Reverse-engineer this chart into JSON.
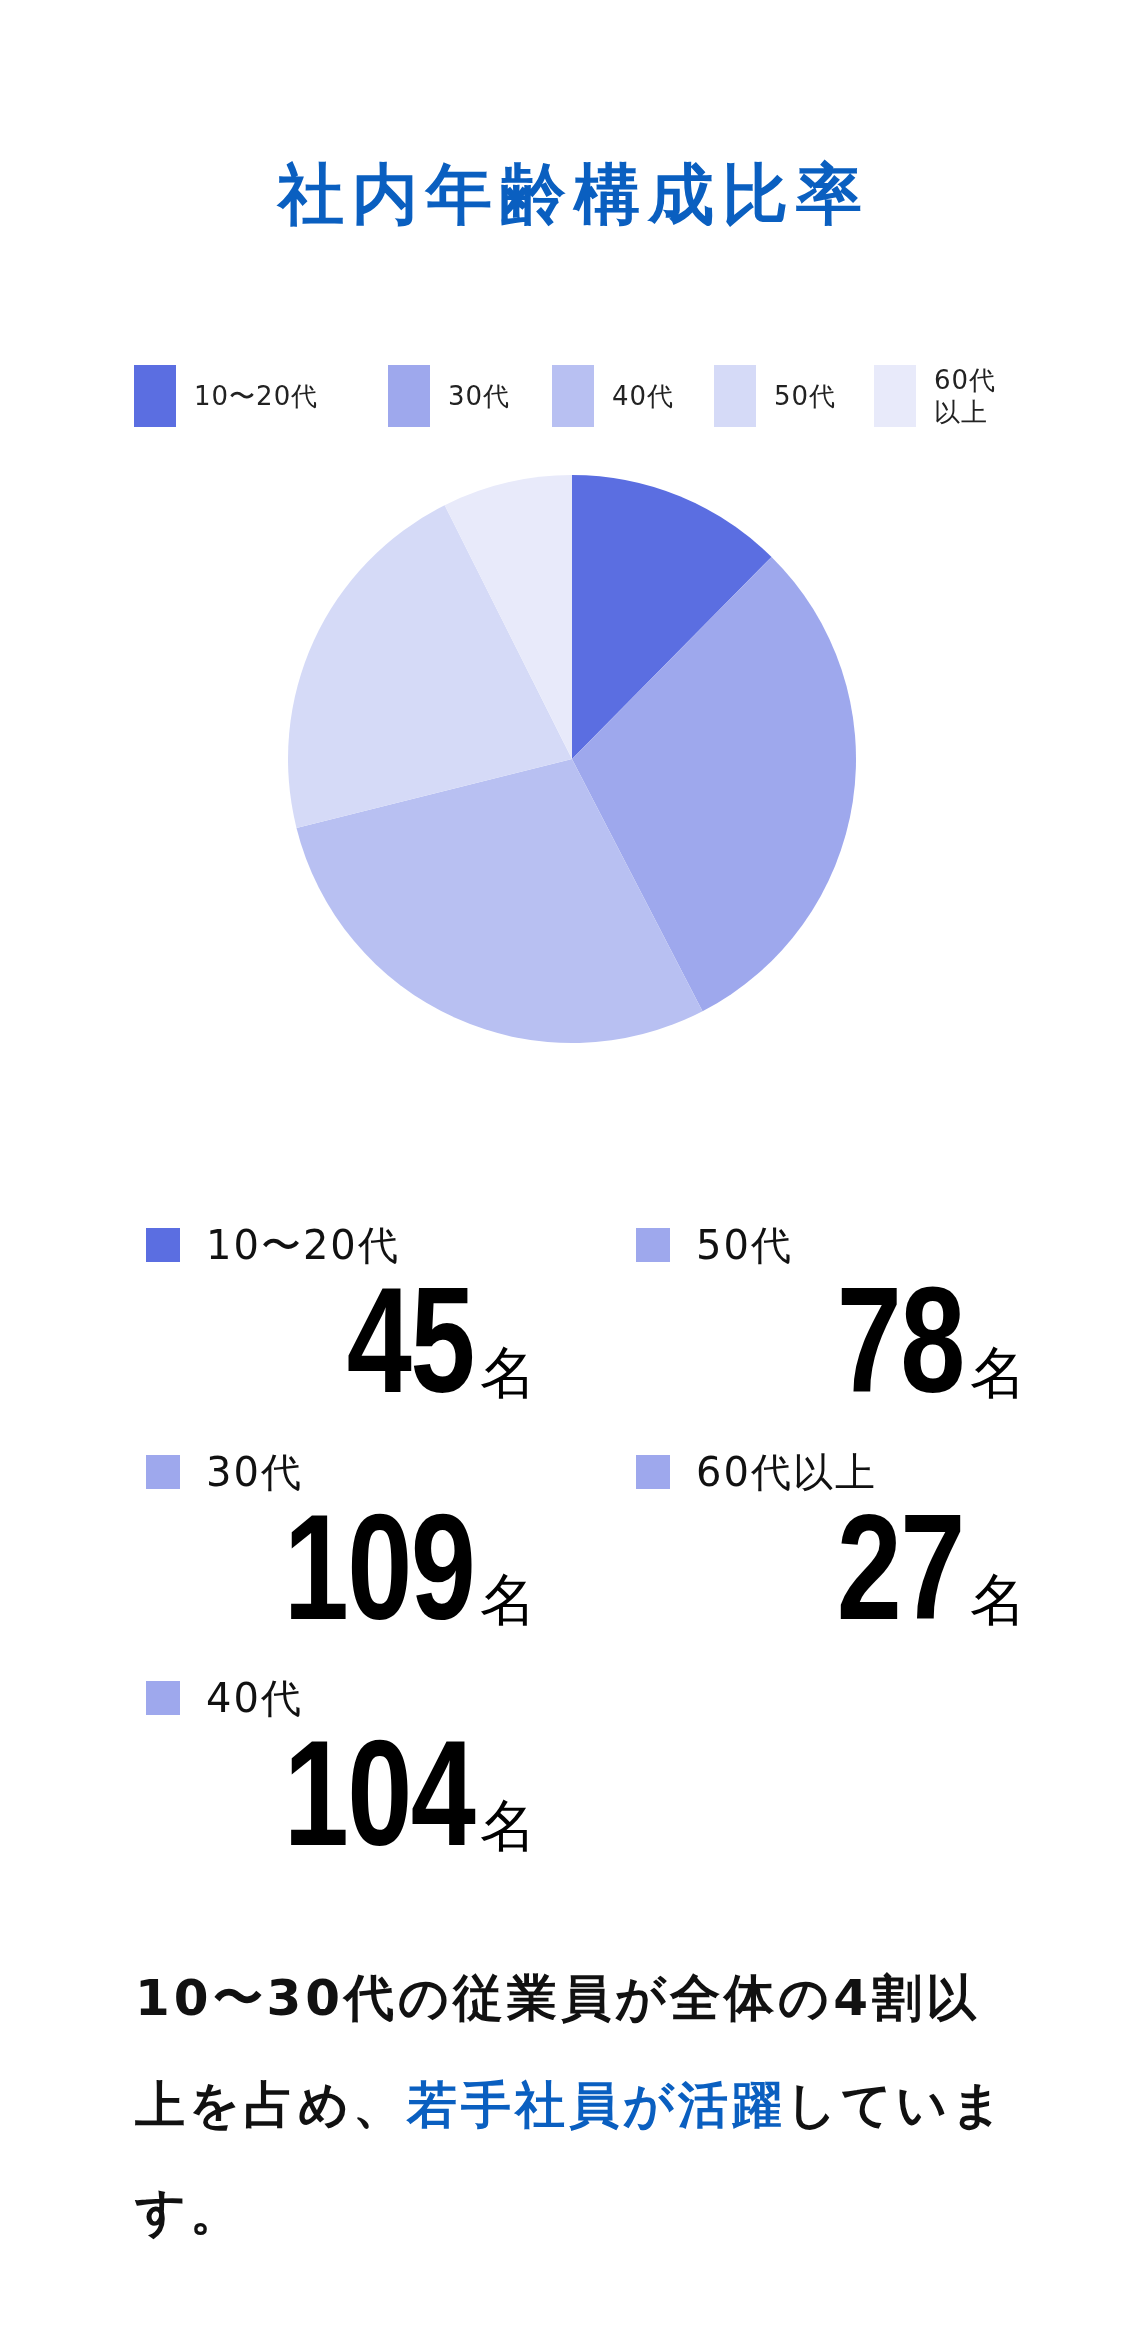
{
  "chart_data": [
    {
      "type": "pie",
      "title": "社内年齢構成比率",
      "categories": [
        "10〜20代",
        "30代",
        "40代",
        "50代",
        "60代以上"
      ],
      "values": [
        12.4,
        30.0,
        28.7,
        21.5,
        7.4
      ],
      "colors": [
        "#5b6ee1",
        "#9ea8ed",
        "#b8c0f2",
        "#d5daf7",
        "#e8eafa"
      ],
      "legend": "top"
    },
    {
      "type": "other",
      "categories": [
        "10〜20代",
        "30代",
        "40代",
        "50代",
        "60代以上"
      ],
      "values": [
        45,
        109,
        104,
        78,
        27
      ],
      "colors": [
        "#5b6ee1",
        "#9ea8ed",
        "#9ea8ed",
        "#9ea8ed",
        "#9ea8ed"
      ],
      "value_labels": [
        "45名",
        "109名",
        "104名",
        "78名",
        "27名"
      ],
      "annotations": [
        "10〜30代の従業員が全体の4割以上を占め、",
        "若手社員が活躍",
        "しています。"
      ]
    }
  ]
}
